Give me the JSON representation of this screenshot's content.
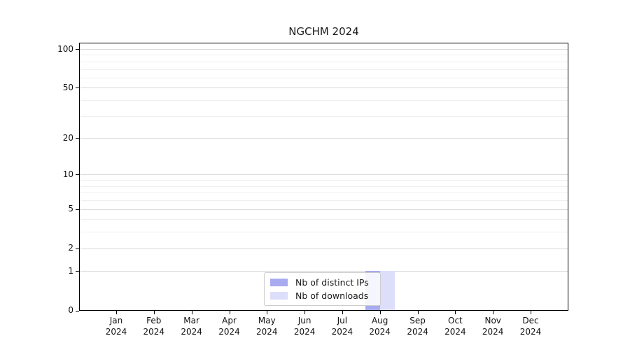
{
  "chart_data": {
    "type": "bar",
    "title": "NGCHM 2024",
    "categories": [
      "Jan",
      "Feb",
      "Mar",
      "Apr",
      "May",
      "Jun",
      "Jul",
      "Aug",
      "Sep",
      "Oct",
      "Nov",
      "Dec"
    ],
    "category_year": "2024",
    "series": [
      {
        "name": "Nb of distinct IPs",
        "color": "#a8abf0",
        "values": [
          0,
          0,
          0,
          0,
          0,
          0,
          0,
          1,
          0,
          0,
          0,
          0
        ]
      },
      {
        "name": "Nb of downloads",
        "color": "#dcdefa",
        "values": [
          0,
          0,
          0,
          0,
          0,
          0,
          0,
          1,
          0,
          0,
          0,
          0
        ]
      }
    ],
    "xlabel": "",
    "ylabel": "",
    "yscale": "log1p",
    "ylim": [
      0,
      112
    ],
    "y_major_ticks": [
      0,
      1,
      2,
      5,
      10,
      20,
      50,
      100
    ],
    "y_minor_ticks": [
      3,
      4,
      6,
      7,
      8,
      9,
      30,
      40,
      60,
      70,
      80,
      90
    ],
    "grid": "horizontal",
    "legend_position": "lower center",
    "background_color": "#ffffff",
    "grid_major_color": "#d9d9d9",
    "grid_minor_color": "#efefef"
  }
}
